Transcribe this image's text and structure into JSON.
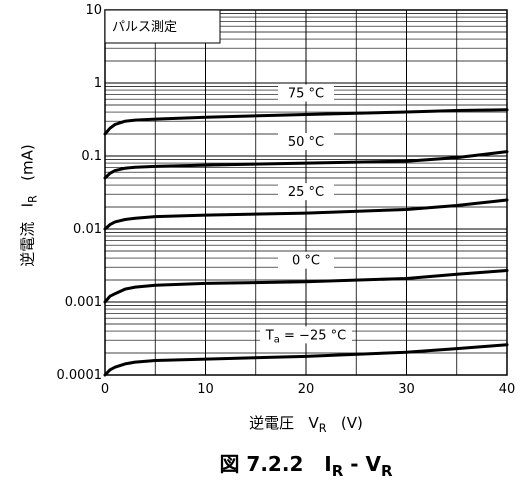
{
  "chart_data": {
    "type": "line",
    "title": "",
    "caption": {
      "prefix": "図 7.2.2",
      "lhs_main": "I",
      "lhs_sub": "R",
      "sep": " - ",
      "rhs_main": "V",
      "rhs_sub": "R"
    },
    "xlabel": {
      "text": "逆電圧",
      "var_main": "V",
      "var_sub": "R",
      "unit": "(V)"
    },
    "ylabel": {
      "text": "逆電流",
      "var_main": "I",
      "var_sub": "R",
      "unit": "(mA)"
    },
    "xlim": [
      0,
      40
    ],
    "ylim": [
      0.0001,
      10
    ],
    "yscale": "log",
    "grid": true,
    "x_ticks": [
      0,
      10,
      20,
      30,
      40
    ],
    "x_tick_labels": [
      "0",
      "10",
      "20",
      "30",
      "40"
    ],
    "y_ticks": [
      0.0001,
      0.001,
      0.01,
      0.1,
      1,
      10
    ],
    "y_tick_labels": [
      "0.0001",
      "0.001",
      "0.01",
      "0.1",
      "1",
      "10"
    ],
    "annotation_box": "パルス測定",
    "series": [
      {
        "name": "75 °C",
        "x": [
          0,
          0.5,
          1,
          2,
          3,
          5,
          10,
          20,
          30,
          35,
          40
        ],
        "y": [
          0.2,
          0.24,
          0.27,
          0.3,
          0.31,
          0.32,
          0.34,
          0.37,
          0.4,
          0.42,
          0.43
        ]
      },
      {
        "name": "50 °C",
        "x": [
          0,
          0.5,
          1,
          2,
          3,
          5,
          10,
          20,
          30,
          35,
          40
        ],
        "y": [
          0.05,
          0.058,
          0.063,
          0.068,
          0.07,
          0.072,
          0.075,
          0.08,
          0.085,
          0.095,
          0.115
        ]
      },
      {
        "name": "25 °C",
        "x": [
          0,
          0.5,
          1,
          2,
          3,
          5,
          10,
          20,
          30,
          35,
          40
        ],
        "y": [
          0.01,
          0.0115,
          0.0125,
          0.0135,
          0.014,
          0.0148,
          0.0155,
          0.0165,
          0.0185,
          0.021,
          0.025
        ]
      },
      {
        "name": "0 °C",
        "x": [
          0,
          0.5,
          1,
          2,
          3,
          5,
          10,
          20,
          30,
          35,
          40
        ],
        "y": [
          0.001,
          0.0012,
          0.0013,
          0.0015,
          0.0016,
          0.0017,
          0.0018,
          0.0019,
          0.0021,
          0.0024,
          0.0027
        ]
      },
      {
        "name": "Ta = −25 °C",
        "name_main": "T",
        "name_sub": "a",
        "name_rest": " = −25 °C",
        "x": [
          0,
          0.5,
          1,
          2,
          3,
          5,
          10,
          20,
          30,
          35,
          40
        ],
        "y": [
          0.0001,
          0.000118,
          0.000128,
          0.000142,
          0.00015,
          0.000158,
          0.000165,
          0.00018,
          0.000205,
          0.00023,
          0.00026
        ]
      }
    ],
    "series_label_x": [
      20,
      20,
      20,
      20,
      20
    ]
  }
}
